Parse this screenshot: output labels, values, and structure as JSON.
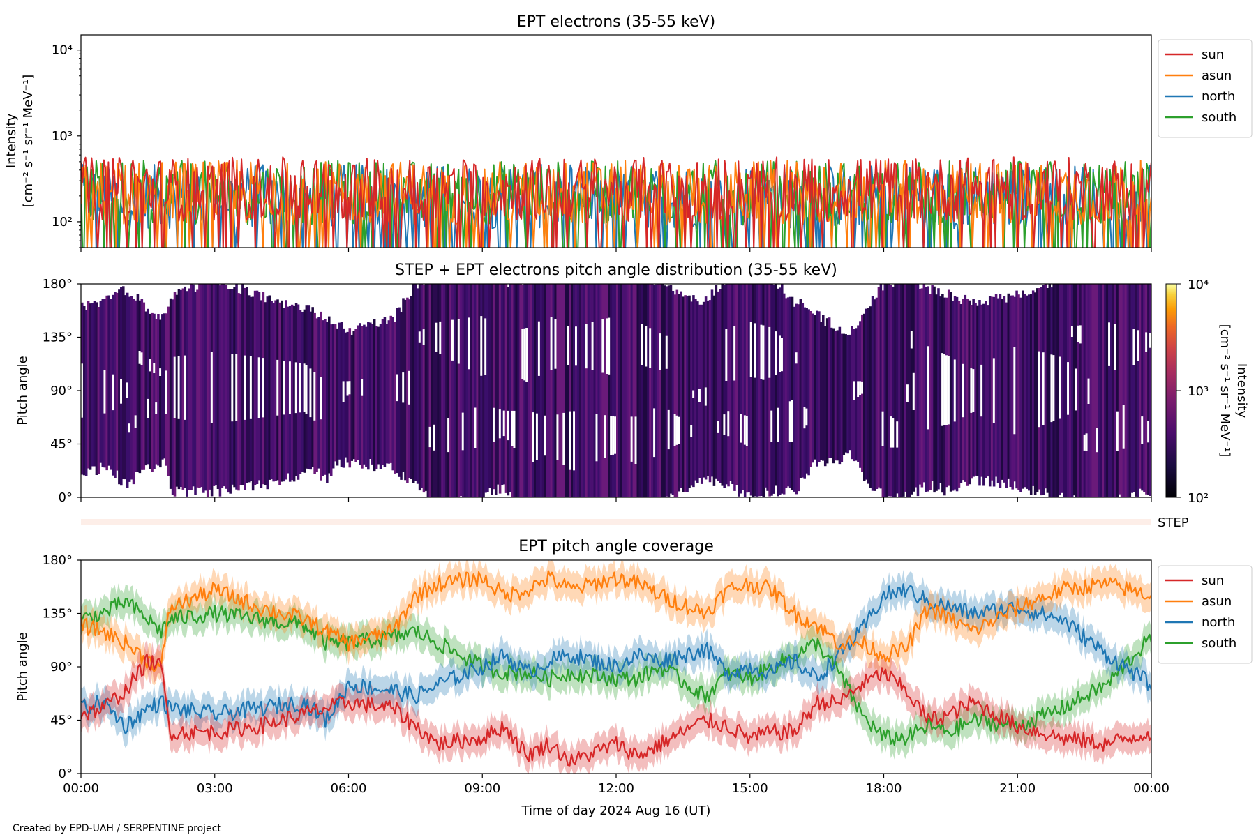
{
  "footer": "Created by EPD-UAH / SERPENTINE project",
  "colors": {
    "sun": "#d62728",
    "asun": "#ff7f0e",
    "north": "#1f77b4",
    "south": "#2ca02c"
  },
  "chart_data": [
    {
      "type": "line",
      "title": "EPT electrons (35-55 keV)",
      "ylabel_line1": "Intensity",
      "ylabel_line2": "[cm⁻² s⁻¹ sr⁻¹ MeV⁻¹]",
      "yscale": "log",
      "ylim": [
        50,
        15000
      ],
      "ytick_labels": [
        "10²",
        "10³",
        "10⁴"
      ],
      "ytick_values": [
        100,
        1000,
        10000
      ],
      "xlim_hours": [
        0,
        24
      ],
      "legend_position": "outside-right",
      "legend": [
        "sun",
        "asun",
        "north",
        "south"
      ],
      "series": [
        {
          "name": "sun",
          "typical_range": [
            50,
            700
          ],
          "median": 220
        },
        {
          "name": "asun",
          "typical_range": [
            50,
            700
          ],
          "median": 200
        },
        {
          "name": "north",
          "typical_range": [
            50,
            600
          ],
          "median": 180
        },
        {
          "name": "south",
          "typical_range": [
            50,
            750
          ],
          "median": 200
        }
      ]
    },
    {
      "type": "heatmap",
      "title": "STEP + EPT electrons pitch angle distribution (35-55 keV)",
      "ylabel": "Pitch angle",
      "ylim": [
        0,
        180
      ],
      "ytick_labels": [
        "0°",
        "45°",
        "90°",
        "135°",
        "180°"
      ],
      "ytick_values": [
        0,
        45,
        90,
        135,
        180
      ],
      "xlim_hours": [
        0,
        24
      ],
      "colorbar": {
        "label_line1": "Intensity",
        "label_line2": "[cm⁻² s⁻¹ sr⁻¹ MeV⁻¹]",
        "scale": "log",
        "range": [
          100,
          10000
        ],
        "tick_labels": [
          "10²",
          "10³",
          "10⁴"
        ],
        "colormap": "inferno"
      },
      "step_strip_label": "STEP"
    },
    {
      "type": "line",
      "title": "EPT pitch angle coverage",
      "ylabel": "Pitch angle",
      "xlabel": "Time of day 2024 Aug 16 (UT)",
      "ylim": [
        0,
        180
      ],
      "ytick_labels": [
        "0°",
        "45°",
        "90°",
        "135°",
        "180°"
      ],
      "ytick_values": [
        0,
        45,
        90,
        135,
        180
      ],
      "xlim_hours": [
        0,
        24
      ],
      "xtick_labels": [
        "00:00",
        "03:00",
        "06:00",
        "09:00",
        "12:00",
        "15:00",
        "18:00",
        "21:00",
        "00:00"
      ],
      "xtick_hours": [
        0,
        3,
        6,
        9,
        12,
        15,
        18,
        21,
        24
      ],
      "legend_position": "outside-right",
      "legend": [
        "sun",
        "asun",
        "north",
        "south"
      ],
      "band_halfwidth_deg": 12,
      "series": [
        {
          "name": "sun",
          "x": [
            0,
            0.5,
            1,
            1.5,
            1.8,
            2,
            3,
            4,
            5,
            5.5,
            6,
            7,
            7.5,
            8,
            9,
            9.5,
            10,
            10.5,
            11,
            12,
            12.5,
            13,
            14,
            14.5,
            15,
            15.5,
            16,
            16.5,
            17,
            17.5,
            18,
            18.5,
            19,
            19.5,
            20,
            21,
            22,
            23,
            24
          ],
          "y": [
            50,
            55,
            70,
            95,
            90,
            35,
            35,
            40,
            50,
            55,
            60,
            55,
            40,
            25,
            30,
            40,
            15,
            25,
            10,
            25,
            15,
            25,
            45,
            40,
            30,
            35,
            35,
            60,
            60,
            75,
            85,
            70,
            45,
            50,
            60,
            40,
            30,
            25,
            35
          ]
        },
        {
          "name": "asun",
          "x": [
            0,
            0.5,
            1,
            1.5,
            1.8,
            2,
            3,
            4,
            5,
            5.5,
            6,
            7,
            7.5,
            8,
            9,
            9.5,
            10,
            10.5,
            11,
            12,
            12.5,
            13,
            14,
            14.5,
            15,
            15.5,
            16,
            16.5,
            17,
            17.5,
            18,
            18.5,
            19,
            19.5,
            20,
            21,
            22,
            23,
            24
          ],
          "y": [
            125,
            120,
            110,
            95,
            90,
            140,
            155,
            140,
            130,
            120,
            110,
            120,
            150,
            160,
            165,
            150,
            155,
            165,
            155,
            165,
            160,
            150,
            135,
            155,
            160,
            155,
            135,
            125,
            110,
            110,
            100,
            105,
            140,
            130,
            120,
            140,
            155,
            160,
            150
          ]
        },
        {
          "name": "north",
          "x": [
            0,
            0.5,
            1,
            1.5,
            1.8,
            2,
            3,
            4,
            5,
            5.5,
            6,
            7,
            7.5,
            8,
            9,
            9.5,
            10,
            10.5,
            11,
            12,
            12.5,
            13,
            14,
            14.5,
            15,
            15.5,
            16,
            16.5,
            17,
            17.5,
            18,
            18.5,
            19,
            19.5,
            20,
            21,
            22,
            23,
            24
          ],
          "y": [
            55,
            60,
            40,
            55,
            60,
            55,
            50,
            55,
            60,
            45,
            75,
            70,
            65,
            75,
            90,
            100,
            85,
            95,
            100,
            90,
            100,
            95,
            105,
            85,
            90,
            85,
            95,
            80,
            100,
            120,
            150,
            155,
            145,
            140,
            135,
            140,
            130,
            100,
            75
          ]
        },
        {
          "name": "south",
          "x": [
            0,
            0.5,
            1,
            1.5,
            1.8,
            2,
            3,
            4,
            5,
            5.5,
            6,
            7,
            7.5,
            8,
            9,
            9.5,
            10,
            10.5,
            11,
            12,
            12.5,
            13,
            14,
            14.5,
            15,
            15.5,
            16,
            16.5,
            17,
            17.5,
            18,
            18.5,
            19,
            19.5,
            20,
            21,
            22,
            23,
            24
          ],
          "y": [
            130,
            135,
            145,
            130,
            120,
            130,
            135,
            130,
            125,
            110,
            110,
            115,
            120,
            110,
            90,
            85,
            85,
            80,
            85,
            80,
            80,
            90,
            65,
            85,
            80,
            90,
            100,
            110,
            85,
            50,
            30,
            30,
            40,
            35,
            45,
            40,
            55,
            75,
            115
          ]
        }
      ]
    }
  ]
}
